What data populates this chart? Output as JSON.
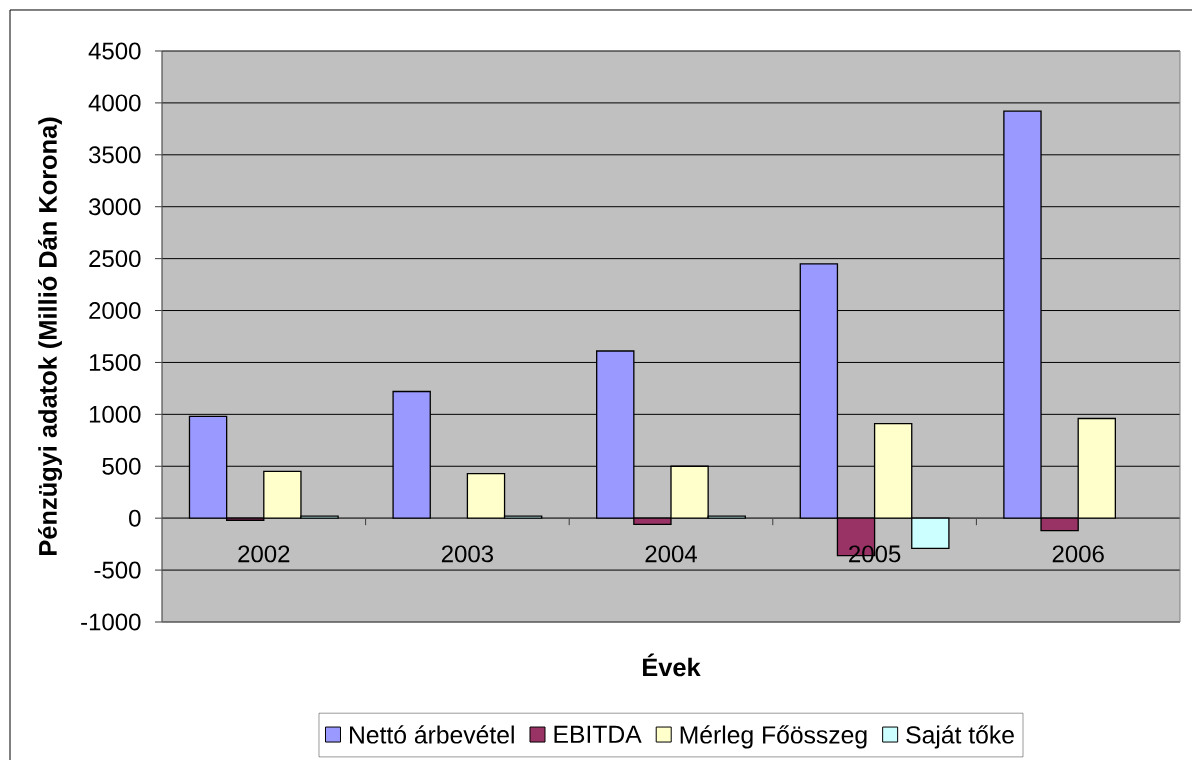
{
  "chart_data": {
    "type": "bar",
    "xlabel": "Évek",
    "ylabel": "Pénzügyi adatok (Millió Dán Korona)",
    "categories": [
      "2002",
      "2003",
      "2004",
      "2005",
      "2006"
    ],
    "series": [
      {
        "name": "Nettó árbevétel",
        "color": "#9999ff",
        "values": [
          980,
          1220,
          1610,
          2450,
          3920
        ]
      },
      {
        "name": "EBITDA",
        "color": "#993366",
        "values": [
          -20,
          null,
          -60,
          -360,
          -120
        ]
      },
      {
        "name": "Mérleg Főösszeg",
        "color": "#ffffcc",
        "values": [
          450,
          430,
          500,
          910,
          960
        ]
      },
      {
        "name": "Saját tőke",
        "color": "#ccffff",
        "values": [
          20,
          20,
          20,
          -290,
          null
        ]
      }
    ],
    "ylim": [
      -1000,
      4500
    ],
    "yticks": [
      -1000,
      -500,
      0,
      500,
      1000,
      1500,
      2000,
      2500,
      3000,
      3500,
      4000,
      4500
    ],
    "grid": "y",
    "legend": "bottom"
  }
}
